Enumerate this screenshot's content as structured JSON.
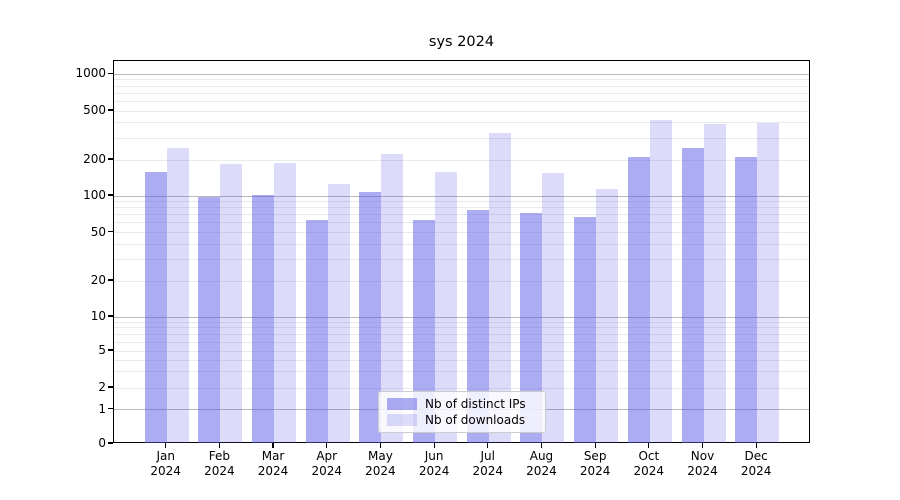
{
  "title": "sys 2024",
  "chart_data": {
    "type": "bar",
    "title": "sys 2024",
    "categories": [
      "Jan",
      "Feb",
      "Mar",
      "Apr",
      "May",
      "Jun",
      "Jul",
      "Aug",
      "Sep",
      "Oct",
      "Nov",
      "Dec"
    ],
    "year_label": "2024",
    "series": [
      {
        "name": "Nb of distinct IPs",
        "color": "rgba(90,90,230,0.5)",
        "values": [
          160,
          99,
          101,
          64,
          107,
          64,
          76,
          72,
          67,
          210,
          250,
          212
        ]
      },
      {
        "name": "Nb of downloads",
        "color": "rgba(90,90,230,0.21)",
        "values": [
          250,
          185,
          190,
          125,
          225,
          160,
          330,
          157,
          115,
          420,
          390,
          400
        ]
      }
    ],
    "y_ticks": [
      0,
      1,
      2,
      5,
      10,
      20,
      50,
      100,
      200,
      500,
      1000
    ],
    "y_scale": "symlog",
    "ylim": [
      0,
      1300
    ],
    "xlabel": "",
    "ylabel": "",
    "grid": "horizontal, major and minor",
    "legend_position": "lower center",
    "background": "#ffffff",
    "grid_major_color": "#b9b9b9",
    "grid_minor_color": "#eaeaea"
  }
}
